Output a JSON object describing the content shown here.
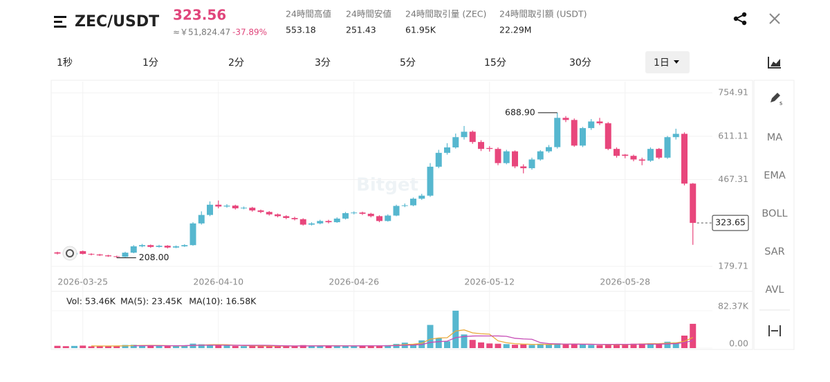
{
  "header": {
    "symbol": "ZEC/USDT",
    "price": 323.56,
    "fiat_price": "≈￥51,824.47",
    "change": "-37.89%",
    "stats": [
      {
        "label": "24時間高値",
        "value": 553.18
      },
      {
        "label": "24時間安値",
        "value": 251.43
      },
      {
        "label": "24時間取引量 (ZEC)",
        "value": "61.95K"
      },
      {
        "label": "24時間取引額 (USDT)",
        "value": "22.29M"
      }
    ]
  },
  "tabs": [
    {
      "label": "1秒",
      "selected": false
    },
    {
      "label": "1分",
      "selected": false
    },
    {
      "label": "2分",
      "selected": false
    },
    {
      "label": "3分",
      "selected": false
    },
    {
      "label": "5分",
      "selected": false
    },
    {
      "label": "15分",
      "selected": false
    },
    {
      "label": "30分",
      "selected": false
    },
    {
      "label": "1日",
      "selected": true
    }
  ],
  "indicators": [
    "MA",
    "EMA",
    "BOLL",
    "SAR",
    "AVL"
  ],
  "watermark": "Bitget",
  "chart_data": [
    {
      "type": "candlestick",
      "categories": [
        null,
        null,
        null,
        "2026-03-25",
        null,
        null,
        null,
        null,
        null,
        null,
        null,
        null,
        null,
        null,
        null,
        null,
        null,
        null,
        null,
        "2026-04-10",
        null,
        null,
        null,
        null,
        null,
        null,
        null,
        null,
        null,
        null,
        null,
        null,
        null,
        null,
        null,
        "2026-04-26",
        null,
        null,
        null,
        null,
        null,
        null,
        null,
        null,
        null,
        null,
        null,
        null,
        null,
        null,
        null,
        "2026-05-12",
        null,
        null,
        null,
        null,
        null,
        null,
        null,
        null,
        null,
        null,
        null,
        null,
        null,
        null,
        null,
        "2026-05-28",
        null,
        null,
        null,
        null,
        null,
        null,
        null,
        null
      ],
      "open": [
        226,
        222,
        219,
        230,
        221,
        219,
        216,
        213,
        211,
        225,
        246,
        250,
        244,
        248,
        242,
        246,
        250,
        322,
        350,
        384,
        378,
        381,
        372,
        374,
        365,
        360,
        352,
        346,
        340,
        336,
        318,
        322,
        330,
        326,
        338,
        356,
        358,
        354,
        346,
        330,
        348,
        380,
        382,
        404,
        414,
        510,
        556,
        574,
        608,
        626,
        592,
        572,
        569,
        522,
        561,
        511,
        505,
        534,
        561,
        575,
        672,
        665,
        580,
        638,
        660,
        654,
        569,
        550,
        546,
        534,
        530,
        569,
        540,
        608,
        619,
        454
      ],
      "high": [
        228,
        224,
        226,
        232,
        223,
        221,
        218,
        215,
        228,
        250,
        254,
        252,
        251,
        250,
        249,
        253,
        326,
        362,
        395,
        398,
        386,
        384,
        378,
        377,
        368,
        363,
        355,
        349,
        344,
        339,
        326,
        334,
        334,
        342,
        360,
        362,
        361,
        357,
        349,
        352,
        384,
        388,
        408,
        420,
        522,
        566,
        588,
        620,
        645,
        630,
        598,
        578,
        574,
        566,
        564,
        518,
        540,
        565,
        582,
        688.9,
        678,
        670,
        642,
        668,
        672,
        658,
        574,
        552,
        550,
        540,
        574,
        572,
        612,
        636,
        624,
        456
      ],
      "low": [
        219,
        216,
        217,
        219,
        216,
        214,
        211,
        208,
        210,
        223,
        243,
        241,
        242,
        239,
        240,
        244,
        248,
        318,
        346,
        372,
        374,
        368,
        369,
        361,
        356,
        348,
        342,
        336,
        332,
        315,
        315,
        319,
        322,
        324,
        335,
        352,
        350,
        342,
        326,
        328,
        346,
        376,
        379,
        400,
        410,
        505,
        550,
        570,
        600,
        586,
        562,
        560,
        515,
        518,
        505,
        488,
        500,
        530,
        556,
        570,
        658,
        576,
        575,
        632,
        648,
        565,
        540,
        538,
        528,
        515,
        526,
        535,
        536,
        600,
        448,
        251
      ],
      "close": [
        222,
        219,
        224,
        221,
        219,
        216,
        213,
        211,
        225,
        246,
        250,
        244,
        248,
        242,
        246,
        250,
        322,
        350,
        384,
        378,
        381,
        372,
        374,
        365,
        360,
        352,
        346,
        340,
        336,
        318,
        322,
        330,
        326,
        338,
        356,
        358,
        354,
        346,
        330,
        348,
        380,
        382,
        404,
        414,
        510,
        556,
        574,
        608,
        626,
        592,
        569,
        569,
        522,
        561,
        511,
        505,
        534,
        561,
        575,
        672,
        665,
        580,
        638,
        660,
        654,
        569,
        546,
        546,
        534,
        530,
        569,
        540,
        608,
        619,
        454,
        323.65
      ],
      "up_color": "#56b7cf",
      "down_color": "#e8467c",
      "ylim": [
        161,
        792
      ],
      "yticks": [
        754.91,
        611.11,
        467.31,
        179.71
      ],
      "grid": true,
      "last_price": 323.65,
      "annotations": [
        {
          "value": 688.9,
          "label": "688.90"
        },
        {
          "value": 208,
          "label": "208.00"
        }
      ]
    },
    {
      "type": "bar",
      "volume_label": "Vol: 53.46K",
      "values": [
        5000,
        4200,
        4800,
        5500,
        3900,
        4600,
        4100,
        5200,
        6800,
        7200,
        5600,
        5100,
        4800,
        4400,
        5000,
        5900,
        9800,
        8400,
        7600,
        6200,
        5400,
        4700,
        4300,
        4900,
        5200,
        4100,
        3800,
        4500,
        5000,
        6600,
        5300,
        4800,
        4400,
        5600,
        5100,
        4700,
        4300,
        5200,
        5800,
        6400,
        9200,
        12000,
        9100,
        17000,
        51000,
        22000,
        15000,
        82370,
        30000,
        18000,
        12500,
        10200,
        9600,
        8800,
        7400,
        8100,
        6900,
        9500,
        7700,
        10400,
        8800,
        9300,
        7600,
        6900,
        6400,
        7100,
        8900,
        9200,
        9600,
        10100,
        10740,
        9800,
        14000,
        12500,
        27500,
        53460
      ],
      "series": [
        {
          "name": "MA(5): 23.45K",
          "color": "#e9a93a",
          "values": [
            null,
            null,
            null,
            null,
            4680,
            4600,
            4580,
            4660,
            4920,
            5580,
            5780,
            5980,
            5900,
            5420,
            4980,
            5040,
            5980,
            6700,
            7340,
            7580,
            7480,
            6460,
            5640,
            5100,
            4900,
            4640,
            4460,
            4500,
            4520,
            4800,
            5040,
            5240,
            5220,
            5340,
            5040,
            4920,
            4820,
            4980,
            5020,
            5280,
            6180,
            7720,
            8500,
            10740,
            19660,
            22220,
            22820,
            37474,
            40074,
            33474,
            31574,
            30614,
            16060,
            11820,
            9700,
            8820,
            8160,
            8140,
            7920,
            8520,
            8660,
            9140,
            8760,
            8600,
            7800,
            7460,
            7380,
            7700,
            8260,
            9000,
            9708,
            9888,
            10848,
            11428,
            14908,
            23452
          ]
        },
        {
          "name": "MA(10): 16.58K",
          "color": "#c64cb6",
          "values": [
            null,
            null,
            null,
            null,
            null,
            null,
            null,
            null,
            null,
            5130,
            5190,
            5280,
            5280,
            5170,
            5280,
            5410,
            5980,
            6300,
            6380,
            6280,
            6260,
            6220,
            6170,
            6220,
            6240,
            6060,
            5460,
            5070,
            4810,
            4850,
            4840,
            4850,
            4860,
            4930,
            4920,
            4980,
            5030,
            5100,
            5180,
            5160,
            5550,
            6270,
            6740,
            7880,
            12470,
            14200,
            15270,
            22987,
            25407,
            26567,
            26897,
            26717,
            26767,
            25947,
            21587,
            20197,
            19387,
            12100,
            9870,
            9110,
            8740,
            8650,
            8450,
            8260,
            8160,
            8060,
            8260,
            8230,
            8430,
            8400,
            8584,
            8634,
            9274,
            9844,
            11954,
            16580
          ]
        }
      ],
      "ylim": [
        0,
        96000
      ],
      "yticks": [
        {
          "value": 82370,
          "label": "82.37K"
        },
        {
          "value": 0,
          "label": "0.00"
        }
      ]
    }
  ]
}
